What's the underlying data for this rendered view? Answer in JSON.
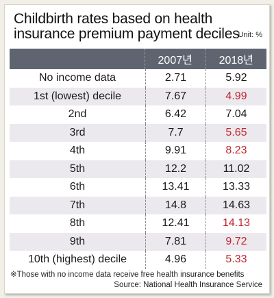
{
  "chart_data": {
    "type": "table",
    "title": "Childbirth rates based on health insurance premium payment deciles",
    "unit": "Unit: %",
    "columns": [
      "2007년",
      "2018년"
    ],
    "rows": [
      {
        "label": "No income data",
        "values": [
          "2.71",
          "5.92"
        ],
        "highlight": false
      },
      {
        "label": "1st (lowest) decile",
        "values": [
          "7.67",
          "4.99"
        ],
        "highlight": true
      },
      {
        "label": "2nd",
        "values": [
          "6.42",
          "7.04"
        ],
        "highlight": false
      },
      {
        "label": "3rd",
        "values": [
          "7.7",
          "5.65"
        ],
        "highlight": true
      },
      {
        "label": "4th",
        "values": [
          "9.91",
          "8.23"
        ],
        "highlight": true
      },
      {
        "label": "5th",
        "values": [
          "12.2",
          "11.02"
        ],
        "highlight": false
      },
      {
        "label": "6th",
        "values": [
          "13.41",
          "13.33"
        ],
        "highlight": false
      },
      {
        "label": "7th",
        "values": [
          "14.8",
          "14.63"
        ],
        "highlight": false
      },
      {
        "label": "8th",
        "values": [
          "12.41",
          "14.13"
        ],
        "highlight": true
      },
      {
        "label": "9th",
        "values": [
          "7.81",
          "9.72"
        ],
        "highlight": true
      },
      {
        "label": "10th (highest) decile",
        "values": [
          "4.96",
          "5.33"
        ],
        "highlight": true
      }
    ],
    "note": "※Those with no income data receive free health insurance benefits",
    "source": "Source: National Health Insurance Service"
  },
  "colors": {
    "header_bg": "#5f6570",
    "highlight": "#c1272d",
    "alt_row": "#ece9ee"
  }
}
